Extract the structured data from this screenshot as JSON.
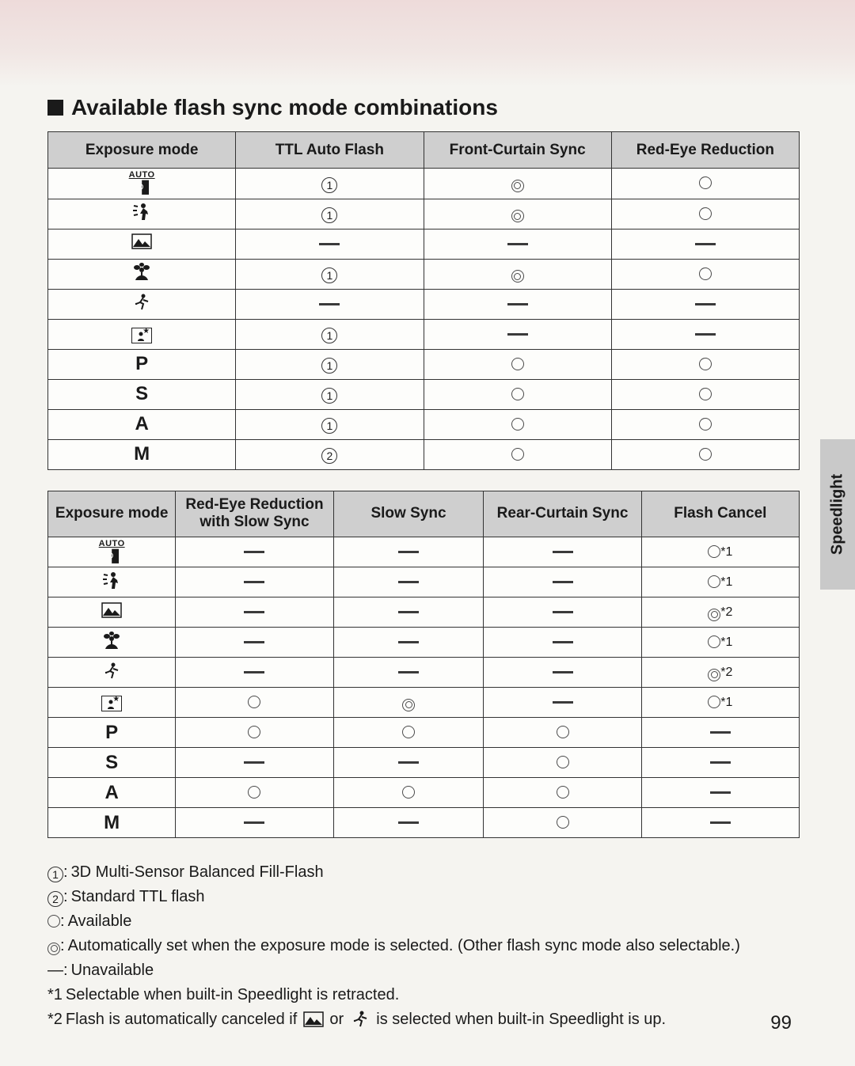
{
  "page_number": "99",
  "side_tab": "Speedlight",
  "title": "Available flash sync mode combinations",
  "colors": {
    "page_background": "#f5f4f0",
    "header_background": "#cfcfcf",
    "border": "#333333",
    "side_tab_background": "#c9c9c9",
    "text": "#1a1a1a"
  },
  "icons": {
    "auto": "AUTO + camera",
    "portrait": "running person with tilt lines",
    "landscape": "mountain",
    "closeup": "flower",
    "sports": "running person",
    "night_portrait": "person with star in frame"
  },
  "symbols": {
    "circ1": "circled 1",
    "circ2": "circled 2",
    "open": "open circle — Available",
    "double": "double circle — Auto-set",
    "dash": "em-dash — Unavailable"
  },
  "table1": {
    "columns": [
      "Exposure mode",
      "TTL Auto Flash",
      "Front-Curtain Sync",
      "Red-Eye Reduction"
    ],
    "column_widths_pct": [
      25,
      25,
      25,
      25
    ],
    "rows": [
      {
        "mode_key": "auto",
        "cells": [
          "circ1",
          "double",
          "open"
        ]
      },
      {
        "mode_key": "portrait",
        "cells": [
          "circ1",
          "double",
          "open"
        ]
      },
      {
        "mode_key": "landscape",
        "cells": [
          "dash",
          "dash",
          "dash"
        ]
      },
      {
        "mode_key": "closeup",
        "cells": [
          "circ1",
          "double",
          "open"
        ]
      },
      {
        "mode_key": "sports",
        "cells": [
          "dash",
          "dash",
          "dash"
        ]
      },
      {
        "mode_key": "night_portrait",
        "cells": [
          "circ1",
          "dash",
          "dash"
        ]
      },
      {
        "mode_key": "P",
        "cells": [
          "circ1",
          "open",
          "open"
        ]
      },
      {
        "mode_key": "S",
        "cells": [
          "circ1",
          "open",
          "open"
        ]
      },
      {
        "mode_key": "A",
        "cells": [
          "circ1",
          "open",
          "open"
        ]
      },
      {
        "mode_key": "M",
        "cells": [
          "circ2",
          "open",
          "open"
        ]
      }
    ]
  },
  "table2": {
    "columns": [
      "Exposure mode",
      "Red-Eye Reduction with Slow Sync",
      "Slow Sync",
      "Rear-Curtain Sync",
      "Flash Cancel"
    ],
    "column_widths_pct": [
      17,
      21,
      20,
      21,
      21
    ],
    "rows": [
      {
        "mode_key": "auto",
        "cells": [
          "dash",
          "dash",
          "dash",
          "open_s1"
        ]
      },
      {
        "mode_key": "portrait",
        "cells": [
          "dash",
          "dash",
          "dash",
          "open_s1"
        ]
      },
      {
        "mode_key": "landscape",
        "cells": [
          "dash",
          "dash",
          "dash",
          "double_s2"
        ]
      },
      {
        "mode_key": "closeup",
        "cells": [
          "dash",
          "dash",
          "dash",
          "open_s1"
        ]
      },
      {
        "mode_key": "sports",
        "cells": [
          "dash",
          "dash",
          "dash",
          "double_s2"
        ]
      },
      {
        "mode_key": "night_portrait",
        "cells": [
          "open",
          "double",
          "dash",
          "open_s1"
        ]
      },
      {
        "mode_key": "P",
        "cells": [
          "open",
          "open",
          "open",
          "dash"
        ]
      },
      {
        "mode_key": "S",
        "cells": [
          "dash",
          "dash",
          "open",
          "dash"
        ]
      },
      {
        "mode_key": "A",
        "cells": [
          "open",
          "open",
          "open",
          "dash"
        ]
      },
      {
        "mode_key": "M",
        "cells": [
          "dash",
          "dash",
          "open",
          "dash"
        ]
      }
    ]
  },
  "legend": {
    "circ1": "3D Multi-Sensor Balanced Fill-Flash",
    "circ2": "Standard TTL flash",
    "open": "Available",
    "double": "Automatically set when the exposure mode is selected. (Other flash sync mode also selectable.)",
    "dash": "Unavailable",
    "star1": "Selectable when built-in Speedlight is retracted.",
    "star2_pre": "Flash is automatically canceled if ",
    "star2_mid": " or ",
    "star2_post": " is selected when built-in Speedlight is up."
  }
}
